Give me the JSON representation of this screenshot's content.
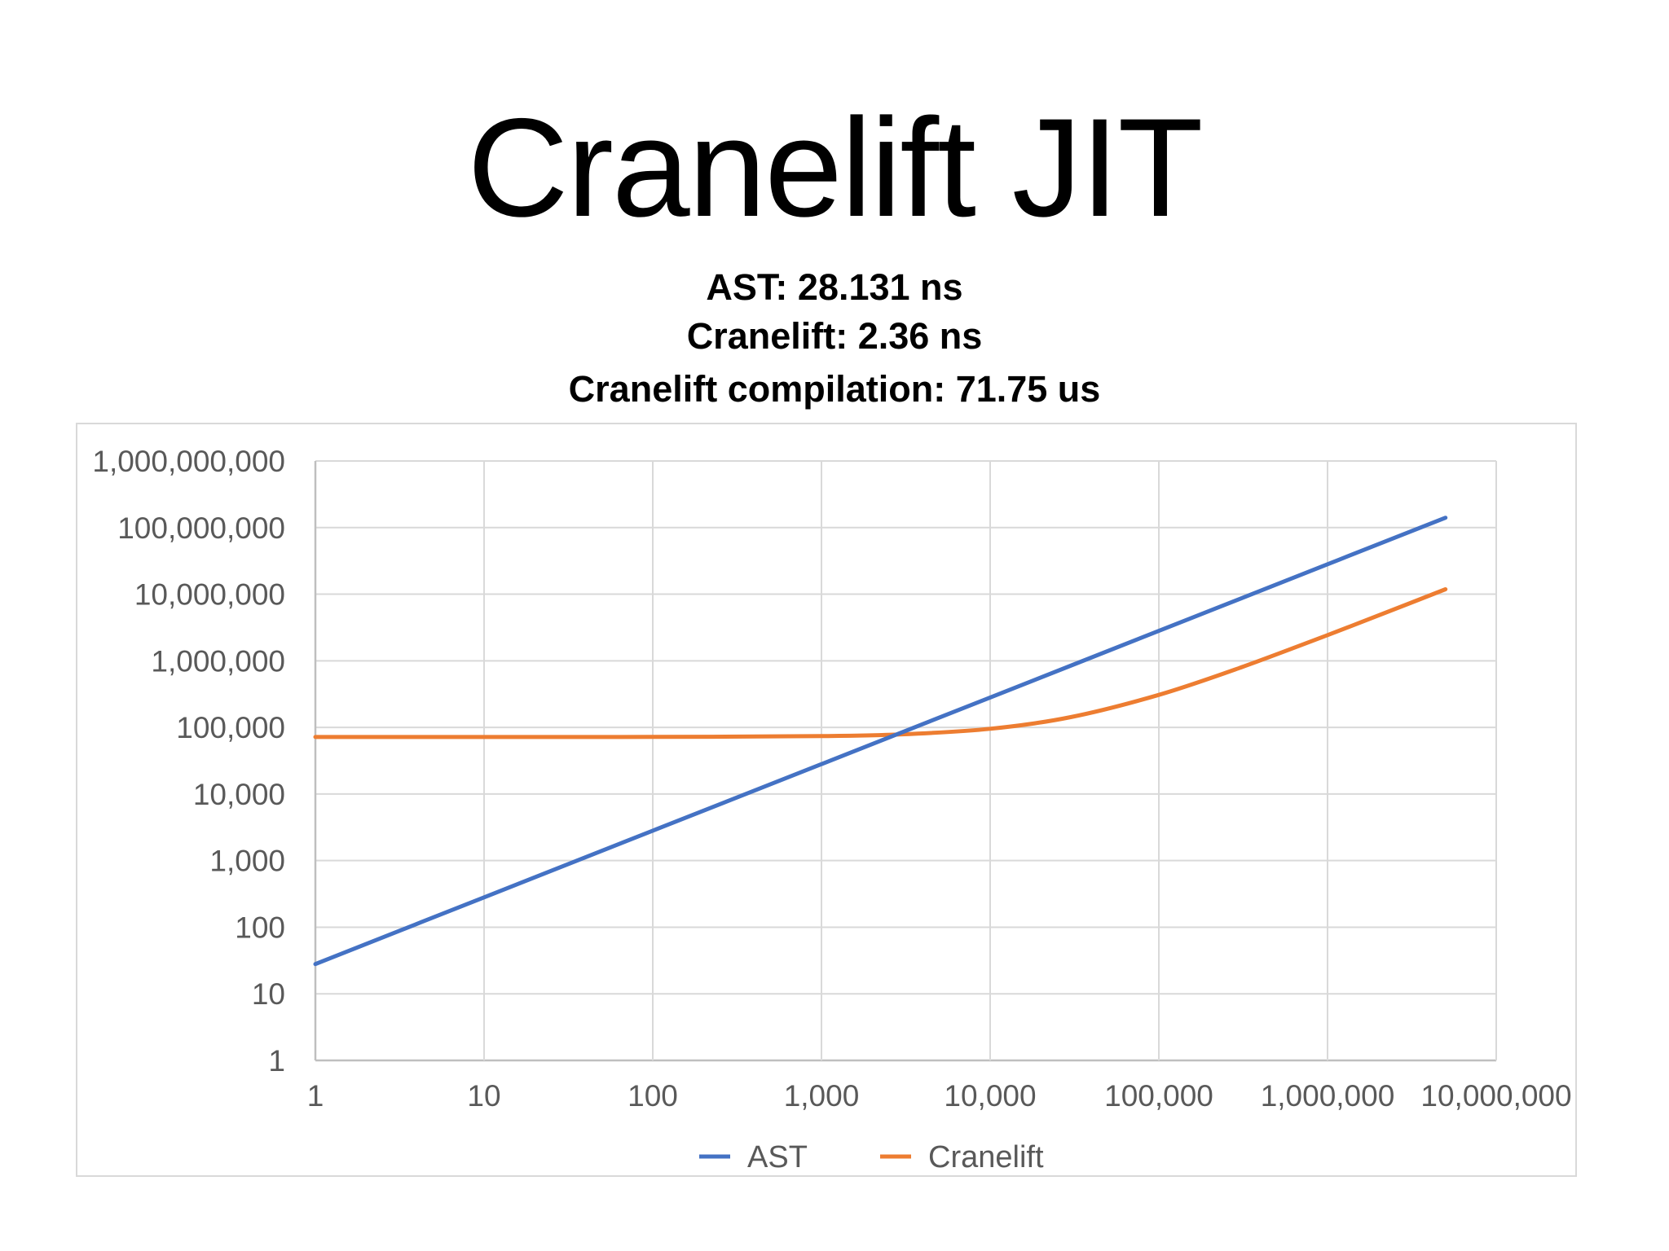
{
  "title": "Cranelift JIT",
  "subtitles": [
    "AST:  28.131 ns",
    "Cranelift: 2.36 ns",
    "Cranelift compilation: 71.75 us"
  ],
  "chart_data": {
    "type": "line",
    "xscale": "log",
    "yscale": "log",
    "xlim": [
      1,
      10000000
    ],
    "ylim": [
      1,
      1000000000
    ],
    "grid": true,
    "legend_position": "bottom",
    "x_tick_labels": [
      "1",
      "10",
      "100",
      "1,000",
      "10,000",
      "100,000",
      "1,000,000",
      "10,000,000"
    ],
    "y_tick_labels": [
      "1",
      "10",
      "100",
      "1,000",
      "10,000",
      "100,000",
      "1,000,000",
      "10,000,000",
      "100,000,000",
      "1,000,000,000"
    ],
    "series": [
      {
        "name": "AST",
        "color": "#4472C4",
        "x": [
          1,
          10,
          100,
          1000,
          10000,
          100000,
          1000000,
          5000000
        ],
        "y": [
          28,
          281,
          2813,
          28131,
          281310,
          2813100,
          28131000,
          140655000
        ]
      },
      {
        "name": "Cranelift",
        "color": "#ED7D31",
        "x": [
          1,
          10,
          100,
          1000,
          3000,
          10000,
          30000,
          100000,
          300000,
          1000000,
          3000000,
          5000000
        ],
        "y": [
          71752,
          71774,
          71986,
          74110,
          78830,
          95350,
          142550,
          307750,
          779750,
          2431750,
          7151750,
          11871750
        ]
      }
    ]
  }
}
